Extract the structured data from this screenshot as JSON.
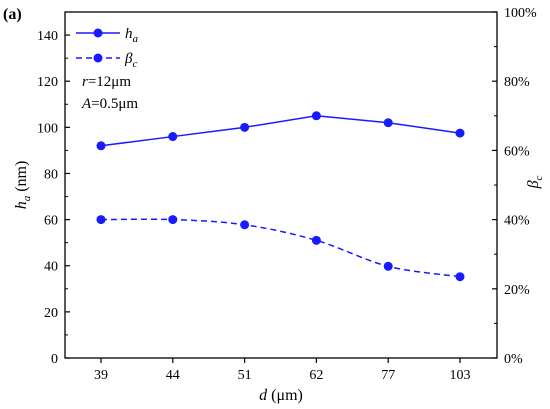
{
  "chart_data": {
    "type": "line",
    "panel_label": "(a)",
    "categories": [
      "39",
      "44",
      "51",
      "62",
      "77",
      "103"
    ],
    "xlabel": {
      "var": "d",
      "unit": " (μm)"
    },
    "ylabel_left": {
      "var": "h",
      "sub": "a",
      "unit": " (nm)"
    },
    "ylabel_right": {
      "var": "β",
      "sub": "c"
    },
    "ylim_left": [
      0,
      150
    ],
    "yticks_left": [
      "0",
      "20",
      "40",
      "60",
      "80",
      "100",
      "120",
      "140"
    ],
    "ylim_right": [
      0,
      100
    ],
    "yticks_right": [
      "0%",
      "20%",
      "40%",
      "60%",
      "80%",
      "100%"
    ],
    "series": [
      {
        "name": "h",
        "sub": "a",
        "axis": "left",
        "style": "solid",
        "color": "#1a1aff",
        "values": [
          92,
          96,
          100,
          105,
          102,
          97.5
        ]
      },
      {
        "name": "β",
        "sub": "c",
        "axis": "right",
        "style": "dashed",
        "color": "#1a1aff",
        "values": [
          40,
          40,
          38.5,
          34,
          26.5,
          23.5
        ]
      }
    ],
    "annotations": [
      {
        "var": "r",
        "text": "=12μm"
      },
      {
        "var": "A",
        "text": "=0.5μm"
      }
    ],
    "legend_position": "top-left",
    "grid": false
  }
}
